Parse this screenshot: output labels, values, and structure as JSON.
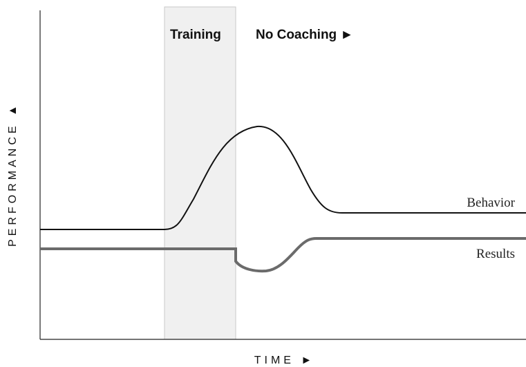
{
  "phases": {
    "training": "Training",
    "no_coaching": "No Coaching ►"
  },
  "axes": {
    "y": "PERFORMANCE ▲",
    "x": "TIME ►"
  },
  "curves": {
    "behavior": "Behavior",
    "results": "Results"
  }
}
